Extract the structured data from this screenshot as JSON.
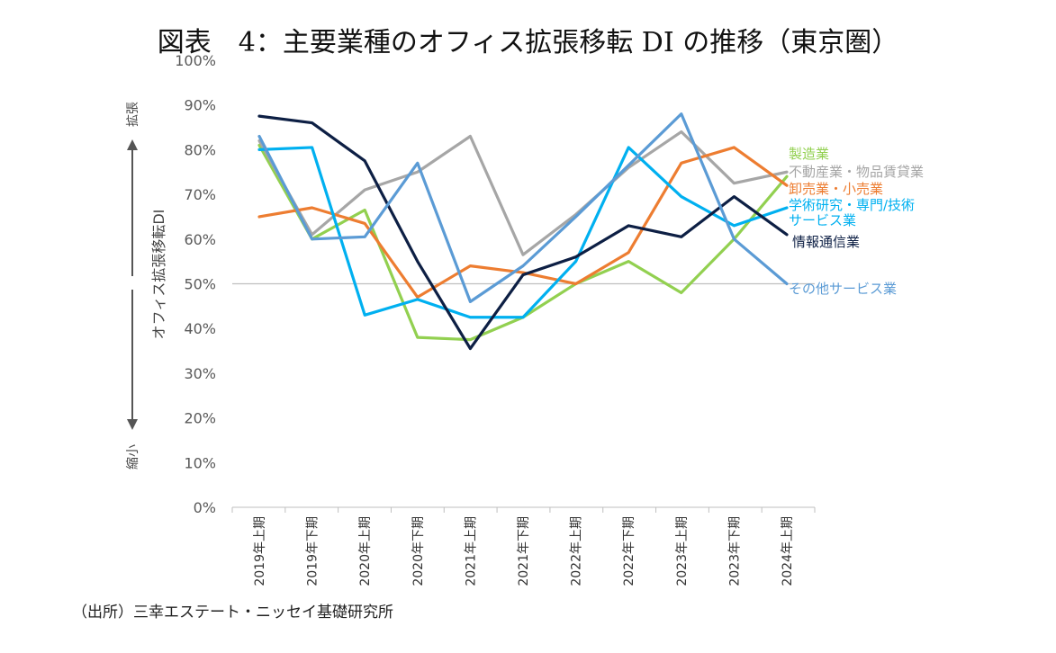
{
  "page": {
    "title": "図表　4：主要業種のオフィス拡張移転 DI の推移（東京圏）",
    "source": "（出所）三幸エステート・ニッセイ基礎研究所"
  },
  "chart_data": {
    "type": "line",
    "title": "図表　4：主要業種のオフィス拡張移転 DI の推移（東京圏）",
    "ylabel": "オフィス拡張移転DI",
    "ylim": [
      0,
      100
    ],
    "yticks": [
      "0%",
      "10%",
      "20%",
      "30%",
      "40%",
      "50%",
      "60%",
      "70%",
      "80%",
      "90%",
      "100%"
    ],
    "reference_line": 50,
    "side_labels": {
      "top": "拡張",
      "bottom": "縮小"
    },
    "categories": [
      "2019年上期",
      "2019年下期",
      "2020年上期",
      "2020年下期",
      "2021年上期",
      "2021年下期",
      "2022年上期",
      "2022年下期",
      "2023年上期",
      "2023年下期",
      "2024年上期"
    ],
    "series": [
      {
        "name": "製造業",
        "color": "#92d050",
        "values": [
          81,
          60,
          66.5,
          38,
          37.5,
          42.5,
          50,
          55,
          48,
          60,
          74
        ]
      },
      {
        "name": "不動産業・物品賃貸業",
        "color": "#a6a6a6",
        "values": [
          82,
          61,
          71,
          75,
          83,
          56.5,
          65.5,
          76,
          84,
          72.5,
          75
        ]
      },
      {
        "name": "卸売業・小売業",
        "color": "#ed7d31",
        "values": [
          65,
          67,
          63.5,
          47,
          54,
          52.5,
          50,
          57,
          77,
          80.5,
          72
        ]
      },
      {
        "name": "学術研究・専門/技術サービス業",
        "color": "#00b0f0",
        "values": [
          80,
          80.5,
          43,
          46.5,
          42.5,
          42.5,
          55,
          80.5,
          69.5,
          63,
          67
        ]
      },
      {
        "name": "情報通信業",
        "color": "#0d1f44",
        "values": [
          87.5,
          86,
          77.5,
          55,
          35.5,
          52,
          56,
          63,
          60.5,
          69.5,
          61
        ]
      },
      {
        "name": "その他サービス業",
        "color": "#5b9bd5",
        "values": [
          83,
          60,
          60.5,
          77,
          46,
          54,
          65,
          76.5,
          88,
          60,
          50
        ]
      }
    ],
    "legend": {
      "placement": "right",
      "lines": [
        "製造業",
        "不動産業・物品賃貸業",
        "卸売業・小売業",
        "学術研究・専門/技術",
        "サービス業",
        "情報通信業",
        "その他サービス業"
      ],
      "colors": [
        "#92d050",
        "#a6a6a6",
        "#ed7d31",
        "#00b0f0",
        "#00b0f0",
        "#0d1f44",
        "#5b9bd5"
      ]
    }
  }
}
